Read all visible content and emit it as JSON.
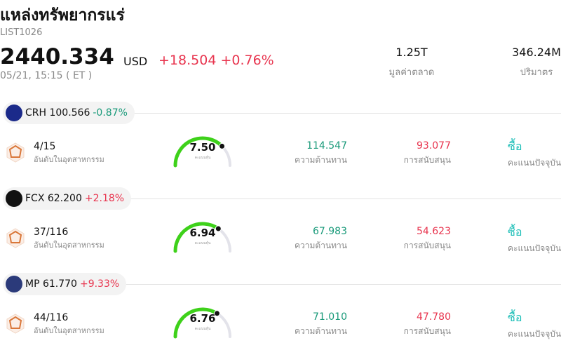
{
  "header": {
    "title": "แหล่งทรัพยากรแร่",
    "code": "LIST1026",
    "price": "2440.334",
    "currency": "USD",
    "change": "+18.504 +0.76%",
    "time": "05/21, 15:15  ( ET )",
    "stats": [
      {
        "value": "1.25T",
        "label": "มูลค่าตลาด"
      },
      {
        "value": "346.24M",
        "label": "ปริมาตร"
      }
    ]
  },
  "cards": [
    {
      "ticker": "CRH 100.566",
      "change": "-0.87%",
      "direction": "down",
      "rank": "4/15",
      "rank_label": "อันดับในอุตสาหกรรม",
      "score": {
        "value": 7.5,
        "label": "7.50"
      },
      "score_label": "คะแนนหุ้น",
      "resistance": "114.547",
      "resistance_label": "ความต้านทาน",
      "support": "93.077",
      "support_label": "การสนับสนุน",
      "signal": "ซื้อ",
      "signal_label": "คะแนนปัจจุบัน"
    },
    {
      "ticker": "FCX 62.200",
      "change": "+2.18%",
      "direction": "up",
      "rank": "37/116",
      "rank_label": "อันดับในอุตสาหกรรม",
      "score": {
        "value": 6.94,
        "label": "6.94"
      },
      "score_label": "คะแนนหุ้น",
      "resistance": "67.983",
      "resistance_label": "ความต้านทาน",
      "support": "54.623",
      "support_label": "การสนับสนุน",
      "signal": "ซื้อ",
      "signal_label": "คะแนนปัจจุบัน"
    },
    {
      "ticker": "MP 61.770",
      "change": "+9.33%",
      "direction": "up",
      "rank": "44/116",
      "rank_label": "อันดับในอุตสาหกรรม",
      "score": {
        "value": 6.76,
        "label": "6.76"
      },
      "score_label": "คะแนนหุ้น",
      "resistance": "71.010",
      "resistance_label": "ความต้านทาน",
      "support": "47.780",
      "support_label": "การสนับสนุน",
      "signal": "ซื้อ",
      "signal_label": "คะแนนปัจจุบัน"
    }
  ]
}
